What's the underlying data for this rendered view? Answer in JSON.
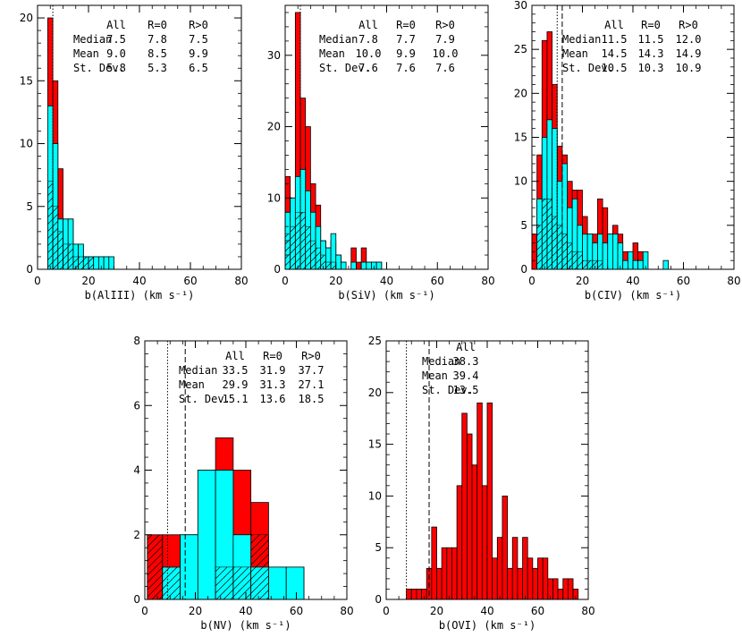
{
  "chart_data": [
    {
      "type": "bar",
      "ion": "AlIII",
      "xlabel": "b(AlIII) (km s⁻¹)",
      "xlim": [
        0,
        80
      ],
      "ylim": [
        0,
        21
      ],
      "xticks": [
        0,
        20,
        40,
        60,
        80
      ],
      "yticks": [
        0,
        5,
        10,
        15,
        20
      ],
      "bin_edges": [
        4,
        6,
        8,
        10,
        12,
        14,
        16,
        18,
        20,
        22,
        24,
        26,
        28,
        30
      ],
      "series": [
        {
          "values": [
            20,
            15,
            8,
            4,
            4,
            2,
            2,
            1,
            1,
            1,
            1,
            1,
            0
          ]
        },
        {
          "values": [
            13,
            10,
            4,
            4,
            4,
            2,
            2,
            1,
            1,
            1,
            1,
            1,
            1
          ]
        },
        {
          "values": [
            7,
            5,
            3,
            2,
            2,
            1,
            1,
            1,
            1,
            0,
            0,
            0,
            0
          ]
        }
      ],
      "vlines": {
        "dotted": 6.0,
        "dashed": null
      },
      "stats": {
        "header": [
          "All",
          "R=0",
          "R>0"
        ],
        "rows": [
          {
            "label": "Median",
            "values": [
              "7.5",
              "7.8",
              "7.5"
            ]
          },
          {
            "label": "Mean",
            "values": [
              "9.0",
              "8.5",
              "9.9"
            ]
          },
          {
            "label": "St. Dev.",
            "values": [
              "5.8",
              "5.3",
              "6.5"
            ]
          }
        ]
      }
    },
    {
      "type": "bar",
      "ion": "SiV",
      "xlabel": "b(SiV) (km s⁻¹)",
      "xlim": [
        0,
        80
      ],
      "ylim": [
        0,
        37
      ],
      "xticks": [
        0,
        20,
        40,
        60,
        80
      ],
      "yticks": [
        0,
        10,
        20,
        30
      ],
      "bin_edges": [
        0,
        2,
        4,
        6,
        8,
        10,
        12,
        14,
        16,
        18,
        20,
        22,
        24,
        26,
        28,
        30,
        32,
        34,
        36,
        38
      ],
      "series": [
        {
          "values": [
            13,
            10,
            36,
            24,
            20,
            12,
            9,
            4,
            3,
            4,
            2,
            1,
            0,
            3,
            1,
            3,
            1,
            1,
            1
          ]
        },
        {
          "values": [
            8,
            10,
            13,
            14,
            11,
            8,
            6,
            4,
            3,
            5,
            2,
            1,
            0,
            1,
            0,
            1,
            1,
            1,
            1
          ]
        },
        {
          "values": [
            5,
            6,
            8,
            8,
            6,
            4,
            3,
            2,
            1,
            1,
            0,
            0,
            0,
            0,
            0,
            0,
            0,
            0,
            0
          ]
        }
      ],
      "vlines": {
        "dotted": 6.0,
        "dashed": null
      },
      "stats": {
        "header": [
          "All",
          "R=0",
          "R>0"
        ],
        "rows": [
          {
            "label": "Median",
            "values": [
              "7.8",
              "7.7",
              "7.9"
            ]
          },
          {
            "label": "Mean",
            "values": [
              "10.0",
              "9.9",
              "10.0"
            ]
          },
          {
            "label": "St. Dev.",
            "values": [
              "7.6",
              "7.6",
              "7.6"
            ]
          }
        ]
      }
    },
    {
      "type": "bar",
      "ion": "CIV",
      "xlabel": "b(CIV) (km s⁻¹)",
      "xlim": [
        0,
        80
      ],
      "ylim": [
        0,
        30
      ],
      "xticks": [
        0,
        20,
        40,
        60,
        80
      ],
      "yticks": [
        0,
        5,
        10,
        15,
        20,
        25,
        30
      ],
      "bin_edges": [
        0,
        2,
        4,
        6,
        8,
        10,
        12,
        14,
        16,
        18,
        20,
        22,
        24,
        26,
        28,
        30,
        32,
        34,
        36,
        38,
        40,
        42,
        44,
        46,
        48,
        50,
        52,
        54
      ],
      "series": [
        {
          "values": [
            4,
            13,
            26,
            27,
            21,
            14,
            13,
            10,
            9,
            9,
            6,
            4,
            4,
            8,
            7,
            4,
            5,
            4,
            2,
            2,
            3,
            2,
            0,
            0,
            0,
            0,
            0
          ]
        },
        {
          "values": [
            0,
            8,
            15,
            17,
            16,
            10,
            12,
            7,
            8,
            5,
            4,
            4,
            3,
            4,
            3,
            4,
            4,
            3,
            1,
            2,
            1,
            1,
            2,
            0,
            0,
            0,
            1
          ]
        },
        {
          "values": [
            0,
            5,
            8,
            8,
            6,
            5,
            4,
            3,
            2,
            2,
            1,
            1,
            1,
            1,
            0,
            0,
            0,
            0,
            0,
            0,
            0,
            0,
            0,
            0,
            0,
            0,
            0
          ]
        }
      ],
      "vlines": {
        "dotted": 10.0,
        "dashed": 12.0
      },
      "stats": {
        "header": [
          "All",
          "R=0",
          "R>0"
        ],
        "rows": [
          {
            "label": "Median",
            "values": [
              "11.5",
              "11.5",
              "12.0"
            ]
          },
          {
            "label": "Mean",
            "values": [
              "14.5",
              "14.3",
              "14.9"
            ]
          },
          {
            "label": "St. Dev.",
            "values": [
              "10.5",
              "10.3",
              "10.9"
            ]
          }
        ]
      }
    },
    {
      "type": "bar",
      "ion": "NV",
      "xlabel": "b(NV) (km s⁻¹)",
      "xlim": [
        0,
        80
      ],
      "ylim": [
        0,
        8
      ],
      "xticks": [
        0,
        20,
        40,
        60,
        80
      ],
      "yticks": [
        0,
        2,
        4,
        6,
        8
      ],
      "bin_edges": [
        1,
        7,
        14,
        21,
        28,
        35,
        42,
        49,
        56,
        63
      ],
      "series": [
        {
          "values": [
            2,
            2,
            2,
            4,
            5,
            4,
            3,
            1,
            1
          ]
        },
        {
          "values": [
            0,
            1,
            2,
            4,
            4,
            2,
            1,
            1,
            1
          ]
        },
        {
          "values": [
            2,
            1,
            0,
            0,
            1,
            1,
            2,
            0,
            0
          ]
        }
      ],
      "vlines": {
        "dotted": 9.0,
        "dashed": 16.0
      },
      "stats": {
        "header": [
          "All",
          "R=0",
          "R>0"
        ],
        "rows": [
          {
            "label": "Median",
            "values": [
              "33.5",
              "31.9",
              "37.7"
            ]
          },
          {
            "label": "Mean",
            "values": [
              "29.9",
              "31.3",
              "27.1"
            ]
          },
          {
            "label": "St. Dev.",
            "values": [
              "15.1",
              "13.6",
              "18.5"
            ]
          }
        ]
      }
    },
    {
      "type": "bar",
      "ion": "OVI",
      "xlabel": "b(OVI) (km s⁻¹)",
      "xlim": [
        0,
        80
      ],
      "ylim": [
        0,
        25
      ],
      "xticks": [
        0,
        20,
        40,
        60,
        80
      ],
      "yticks": [
        0,
        5,
        10,
        15,
        20,
        25
      ],
      "bin_edges": [
        8,
        10,
        12,
        14,
        16,
        18,
        20,
        22,
        24,
        26,
        28,
        30,
        32,
        34,
        36,
        38,
        40,
        42,
        44,
        46,
        48,
        50,
        52,
        54,
        56,
        58,
        60,
        62,
        64,
        66,
        68,
        70,
        72,
        74,
        76,
        78
      ],
      "series": [
        {
          "values": [
            1,
            1,
            1,
            1,
            3,
            7,
            3,
            5,
            5,
            5,
            11,
            18,
            16,
            13,
            19,
            11,
            19,
            4,
            6,
            10,
            3,
            6,
            3,
            6,
            4,
            3,
            4,
            4,
            2,
            2,
            1,
            2,
            2,
            1,
            0
          ]
        },
        {
          "values": [
            0,
            0,
            0,
            0,
            0,
            0,
            0,
            0,
            0,
            0,
            0,
            0,
            0,
            0,
            0,
            0,
            0,
            0,
            0,
            0,
            0,
            0,
            0,
            0,
            0,
            0,
            0,
            0,
            0,
            0,
            0,
            0,
            0,
            0,
            0
          ]
        },
        {
          "values": [
            0,
            0,
            0,
            0,
            0,
            0,
            0,
            0,
            0,
            0,
            0,
            0,
            0,
            0,
            0,
            0,
            0,
            0,
            0,
            0,
            0,
            0,
            0,
            0,
            0,
            0,
            0,
            0,
            0,
            0,
            0,
            0,
            0,
            0,
            0
          ]
        }
      ],
      "vlines": {
        "dotted": 8.0,
        "dashed": 17.0
      },
      "stats": {
        "header": [
          "All"
        ],
        "rows": [
          {
            "label": "Median",
            "values": [
              "38.3"
            ]
          },
          {
            "label": "Mean",
            "values": [
              "39.4"
            ]
          },
          {
            "label": "St. Dev.",
            "values": [
              "13.5"
            ]
          }
        ]
      }
    }
  ],
  "colors": {
    "all": "#ff0000",
    "r_zero": "#00ffff",
    "r_positive": "#000000",
    "axes": "#000000"
  }
}
